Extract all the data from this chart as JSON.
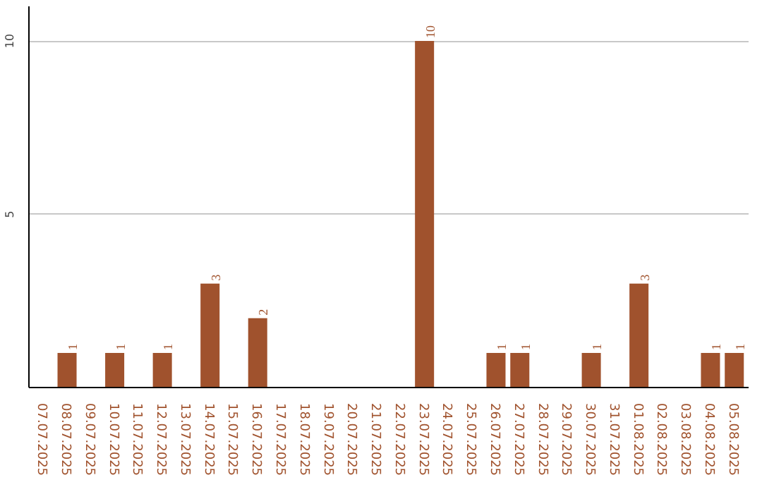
{
  "chart_data": {
    "type": "bar",
    "categories": [
      "07.07.2025",
      "08.07.2025",
      "09.07.2025",
      "10.07.2025",
      "11.07.2025",
      "12.07.2025",
      "13.07.2025",
      "14.07.2025",
      "15.07.2025",
      "16.07.2025",
      "17.07.2025",
      "18.07.2025",
      "19.07.2025",
      "20.07.2025",
      "21.07.2025",
      "22.07.2025",
      "23.07.2025",
      "24.07.2025",
      "25.07.2025",
      "26.07.2025",
      "27.07.2025",
      "28.07.2025",
      "29.07.2025",
      "30.07.2025",
      "31.07.2025",
      "01.08.2025",
      "02.08.2025",
      "03.08.2025",
      "04.08.2025",
      "05.08.2025"
    ],
    "values": [
      0,
      1,
      0,
      1,
      0,
      1,
      0,
      3,
      0,
      2,
      0,
      0,
      0,
      0,
      0,
      0,
      10,
      0,
      0,
      1,
      1,
      0,
      0,
      1,
      0,
      3,
      0,
      0,
      1,
      1
    ],
    "color": "#a0522d",
    "ylim": [
      0,
      11
    ],
    "yticks": [
      {
        "value": 0,
        "label": null
      },
      5,
      10
    ],
    "grid": "y",
    "value_labels": [
      null,
      "1",
      null,
      "1",
      null,
      "1",
      null,
      "3",
      null,
      "2",
      null,
      null,
      null,
      null,
      null,
      null,
      "10",
      null,
      null,
      "1",
      "1",
      null,
      null,
      "1",
      null,
      "3",
      null,
      null,
      "1",
      "1"
    ]
  }
}
